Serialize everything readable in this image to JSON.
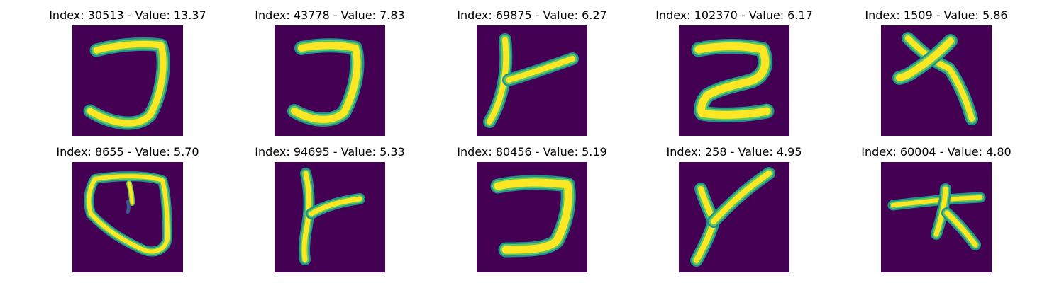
{
  "colors": {
    "background": "#440154",
    "stroke_edge": "#21918c",
    "stroke_mid": "#5ec962",
    "stroke_core": "#fde725"
  },
  "panels": [
    {
      "title": "Index: 30513 - Value: 13.37",
      "glyph": "reversed-c-hook"
    },
    {
      "title": "Index: 43778 - Value: 7.83",
      "glyph": "reversed-c-hook"
    },
    {
      "title": "Index: 69875 - Value: 6.27",
      "glyph": "vertical-stroke-with-branch"
    },
    {
      "title": "Index: 102370 - Value: 6.17",
      "glyph": "two-like-zigzag"
    },
    {
      "title": "Index: 1509 - Value: 5.86",
      "glyph": "cross-with-tail"
    },
    {
      "title": "Index: 8655 - Value: 5.70",
      "glyph": "loop"
    },
    {
      "title": "Index: 94695 - Value: 5.33",
      "glyph": "vertical-stroke-with-branch"
    },
    {
      "title": "Index: 80456 - Value: 5.19",
      "glyph": "reversed-c-hook"
    },
    {
      "title": "Index: 258 - Value: 4.95",
      "glyph": "y-like-branch"
    },
    {
      "title": "Index: 60004 - Value: 4.80",
      "glyph": "horizontal-stroke-with-branches"
    }
  ]
}
